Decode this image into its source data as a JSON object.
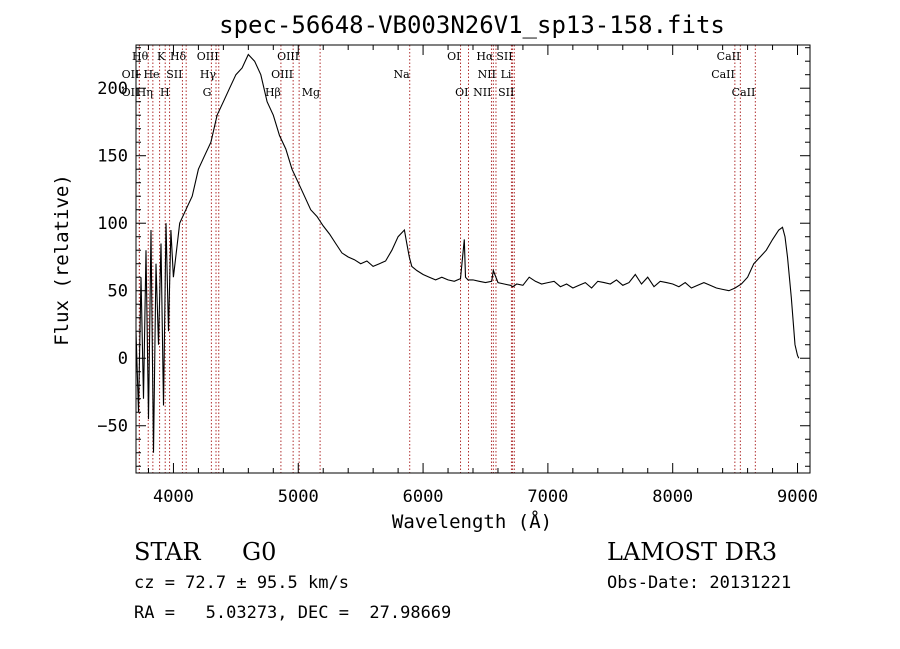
{
  "chart_data": {
    "type": "line",
    "title": "spec-56648-VB003N26V1_sp13-158.fits",
    "xlabel": "Wavelength (Å)",
    "ylabel": "Flux (relative)",
    "xlim": [
      3700,
      9100
    ],
    "ylim": [
      -85,
      232
    ],
    "xticks": [
      {
        "value": 4000,
        "label": "4000"
      },
      {
        "value": 5000,
        "label": "5000"
      },
      {
        "value": 6000,
        "label": "6000"
      },
      {
        "value": 7000,
        "label": "7000"
      },
      {
        "value": 8000,
        "label": "8000"
      },
      {
        "value": 9000,
        "label": "9000"
      }
    ],
    "yticks": [
      {
        "value": -50,
        "label": "−50"
      },
      {
        "value": 0,
        "label": "0"
      },
      {
        "value": 50,
        "label": "50"
      },
      {
        "value": 100,
        "label": "100"
      },
      {
        "value": 150,
        "label": "150"
      },
      {
        "value": 200,
        "label": "200"
      }
    ],
    "grid": false,
    "series": [
      {
        "name": "flux",
        "x": [
          3700,
          3720,
          3740,
          3760,
          3780,
          3800,
          3820,
          3840,
          3860,
          3880,
          3900,
          3920,
          3940,
          3960,
          3980,
          4000,
          4050,
          4100,
          4150,
          4200,
          4250,
          4300,
          4350,
          4400,
          4450,
          4500,
          4550,
          4600,
          4650,
          4700,
          4750,
          4800,
          4850,
          4900,
          4950,
          5000,
          5050,
          5100,
          5150,
          5200,
          5250,
          5300,
          5350,
          5400,
          5450,
          5500,
          5550,
          5600,
          5650,
          5700,
          5750,
          5800,
          5850,
          5870,
          5890,
          5910,
          5950,
          6000,
          6050,
          6100,
          6150,
          6200,
          6250,
          6300,
          6330,
          6340,
          6360,
          6400,
          6450,
          6500,
          6550,
          6563,
          6600,
          6650,
          6700,
          6720,
          6750,
          6800,
          6850,
          6900,
          6950,
          7000,
          7050,
          7100,
          7150,
          7200,
          7250,
          7300,
          7350,
          7400,
          7450,
          7500,
          7550,
          7600,
          7650,
          7700,
          7750,
          7800,
          7850,
          7900,
          7950,
          8000,
          8050,
          8100,
          8150,
          8200,
          8250,
          8300,
          8350,
          8400,
          8450,
          8500,
          8550,
          8600,
          8650,
          8700,
          8750,
          8800,
          8850,
          8880,
          8900,
          8920,
          8950,
          8980,
          9000,
          9010
        ],
        "y": [
          20,
          -40,
          60,
          -30,
          80,
          -45,
          95,
          -70,
          70,
          10,
          85,
          -35,
          100,
          20,
          95,
          60,
          100,
          110,
          120,
          140,
          150,
          160,
          180,
          190,
          200,
          210,
          215,
          225,
          220,
          210,
          190,
          180,
          165,
          155,
          140,
          130,
          120,
          110,
          105,
          98,
          92,
          85,
          78,
          75,
          73,
          70,
          72,
          68,
          70,
          72,
          80,
          90,
          95,
          85,
          75,
          68,
          65,
          62,
          60,
          58,
          60,
          58,
          57,
          59,
          88,
          60,
          58,
          58,
          57,
          56,
          57,
          65,
          56,
          55,
          54,
          53,
          55,
          54,
          60,
          57,
          55,
          56,
          57,
          53,
          55,
          52,
          54,
          56,
          52,
          57,
          56,
          55,
          58,
          54,
          56,
          62,
          55,
          60,
          53,
          57,
          56,
          55,
          53,
          56,
          52,
          54,
          56,
          54,
          52,
          51,
          50,
          52,
          55,
          60,
          70,
          75,
          80,
          88,
          95,
          97,
          90,
          75,
          45,
          10,
          2,
          0
        ]
      }
    ],
    "lines": {
      "left_labels": [
        {
          "label": "Hθ",
          "row": 0,
          "wavelength": 3798
        },
        {
          "label": "OII",
          "row": 1,
          "wavelength": 3727
        },
        {
          "label": "OII",
          "row": 2,
          "wavelength": 3727
        },
        {
          "label": "Hη",
          "row": 2,
          "wavelength": 3835
        },
        {
          "label": "He",
          "row": 1,
          "wavelength": 3889
        },
        {
          "label": "K",
          "row": 0,
          "wavelength": 3934
        },
        {
          "label": "SII",
          "row": 1,
          "wavelength": 4072
        },
        {
          "label": "H",
          "row": 2,
          "wavelength": 3969
        },
        {
          "label": "Hδ",
          "row": 0,
          "wavelength": 4102
        },
        {
          "label": "OIII",
          "row": 0,
          "wavelength": 4363
        },
        {
          "label": "Hγ",
          "row": 1,
          "wavelength": 4341
        },
        {
          "label": "G",
          "row": 2,
          "wavelength": 4304
        }
      ],
      "right_labels": [
        {
          "label": "Hβ",
          "row": 2,
          "wavelength": 4861
        },
        {
          "label": "OIII",
          "row": 0,
          "wavelength": 5007
        },
        {
          "label": "OIII",
          "row": 1,
          "wavelength": 4959
        },
        {
          "label": "Mg",
          "row": 2,
          "wavelength": 5175
        },
        {
          "label": "Na",
          "row": 1,
          "wavelength": 5893
        },
        {
          "label": "OI",
          "row": 0,
          "wavelength": 6300
        },
        {
          "label": "OI",
          "row": 2,
          "wavelength": 6364
        },
        {
          "label": "Hα",
          "row": 0,
          "wavelength": 6563
        },
        {
          "label": "NII",
          "row": 1,
          "wavelength": 6584
        },
        {
          "label": "NII",
          "row": 2,
          "wavelength": 6548
        },
        {
          "label": "SII",
          "row": 0,
          "wavelength": 6717
        },
        {
          "label": "Li",
          "row": 1,
          "wavelength": 6708
        },
        {
          "label": "SII",
          "row": 2,
          "wavelength": 6731
        },
        {
          "label": "CaII",
          "row": 0,
          "wavelength": 8542
        },
        {
          "label": "CaII",
          "row": 1,
          "wavelength": 8498
        },
        {
          "label": "CaII",
          "row": 2,
          "wavelength": 8662
        }
      ]
    },
    "colors": {
      "curve": "#000000",
      "line_marker": "#b03030",
      "axis": "#000000"
    }
  },
  "info": {
    "class_label": "STAR",
    "subclass": "G0",
    "survey": "LAMOST DR3",
    "redshift": "cz = 72.7 ± 95.5 km/s",
    "obs_date": "Obs-Date: 20131221",
    "coords": "RA =   5.03273, DEC =  27.98669"
  }
}
